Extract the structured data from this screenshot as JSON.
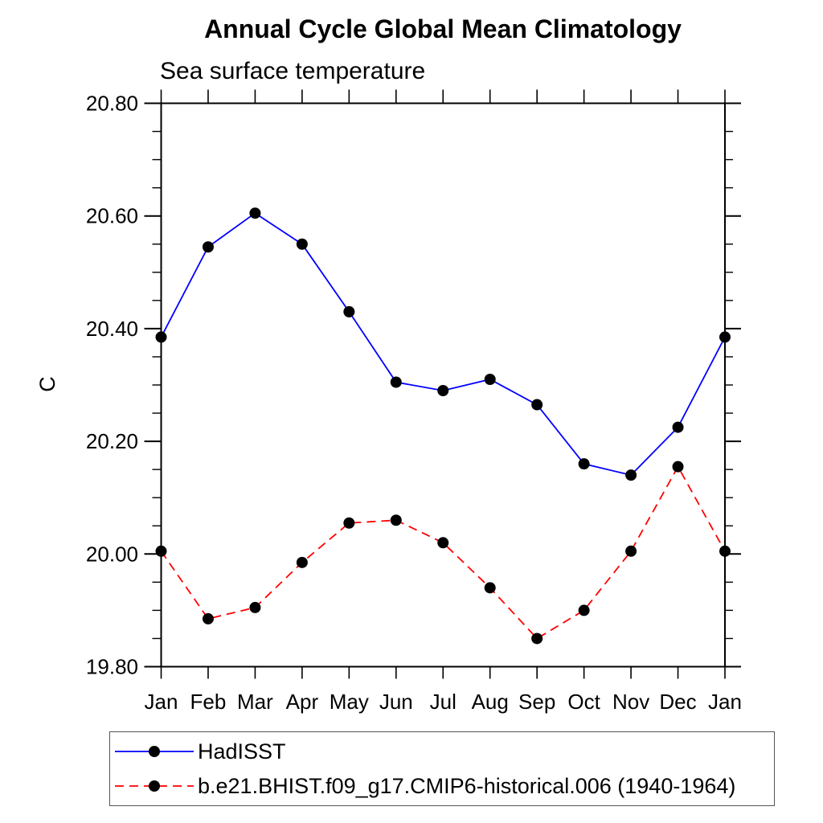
{
  "title": "Annual Cycle Global Mean Climatology",
  "subtitle": "Sea surface temperature",
  "chart_data": {
    "type": "line",
    "title": "Annual Cycle Global Mean Climatology",
    "subtitle": "Sea surface temperature",
    "xlabel": "",
    "ylabel": "C",
    "categories": [
      "Jan",
      "Feb",
      "Mar",
      "Apr",
      "May",
      "Jun",
      "Jul",
      "Aug",
      "Sep",
      "Oct",
      "Nov",
      "Dec",
      "Jan"
    ],
    "ylim": [
      19.8,
      20.8
    ],
    "ytick_major_step": 0.2,
    "ytick_minor_step": 0.05,
    "ytick_labels": [
      "19.80",
      "20.00",
      "20.20",
      "20.40",
      "20.60",
      "20.80"
    ],
    "grid": false,
    "legend_position": "bottom-left",
    "axis_color": "#000000",
    "marker_color": "#000000",
    "series": [
      {
        "name": "HadISST",
        "color": "#0000ff",
        "style": "solid",
        "marker": "filled-circle",
        "values": [
          20.385,
          20.545,
          20.605,
          20.55,
          20.43,
          20.305,
          20.29,
          20.31,
          20.265,
          20.16,
          20.14,
          20.225,
          20.385
        ]
      },
      {
        "name": "b.e21.BHIST.f09_g17.CMIP6-historical.006 (1940-1964)",
        "color": "#ff0000",
        "style": "dashed",
        "marker": "filled-circle",
        "values": [
          20.005,
          19.885,
          19.905,
          19.985,
          20.055,
          20.06,
          20.02,
          19.94,
          19.85,
          19.9,
          20.005,
          20.155,
          20.005
        ]
      }
    ]
  }
}
